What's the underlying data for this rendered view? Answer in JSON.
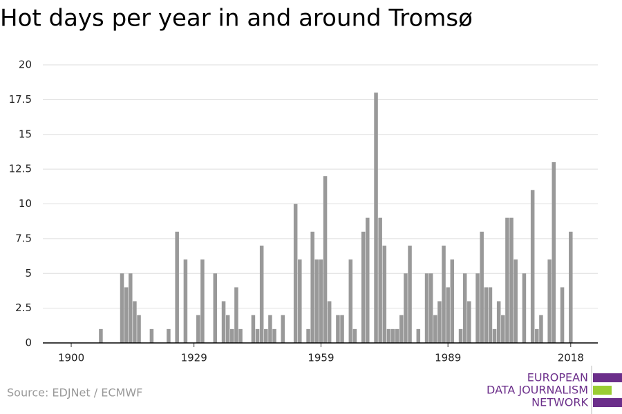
{
  "chart_data": {
    "type": "bar",
    "title": "Hot days per year in and around Tromsø",
    "source": "Source: EDJNet / ECMWF",
    "logo": [
      "EUROPEAN",
      "DATA JOURNALISM",
      "NETWORK"
    ],
    "color": "#999999",
    "x": [
      1900,
      1901,
      1902,
      1903,
      1904,
      1905,
      1906,
      1907,
      1908,
      1909,
      1910,
      1911,
      1912,
      1913,
      1914,
      1915,
      1916,
      1917,
      1918,
      1919,
      1920,
      1921,
      1922,
      1923,
      1924,
      1925,
      1926,
      1927,
      1928,
      1929,
      1930,
      1931,
      1932,
      1933,
      1934,
      1935,
      1936,
      1937,
      1938,
      1939,
      1940,
      1941,
      1942,
      1943,
      1944,
      1945,
      1946,
      1947,
      1948,
      1949,
      1950,
      1951,
      1952,
      1953,
      1954,
      1955,
      1956,
      1957,
      1958,
      1959,
      1960,
      1961,
      1962,
      1963,
      1964,
      1965,
      1966,
      1967,
      1968,
      1969,
      1970,
      1971,
      1972,
      1973,
      1974,
      1975,
      1976,
      1977,
      1978,
      1979,
      1980,
      1981,
      1982,
      1983,
      1984,
      1985,
      1986,
      1987,
      1988,
      1989,
      1990,
      1991,
      1992,
      1993,
      1994,
      1995,
      1996,
      1997,
      1998,
      1999,
      2000,
      2001,
      2002,
      2003,
      2004,
      2005,
      2006,
      2007,
      2008,
      2009,
      2010,
      2011,
      2012,
      2013,
      2014,
      2015,
      2016,
      2017,
      2018
    ],
    "values": [
      0,
      0,
      0,
      0,
      0,
      0,
      0,
      1,
      0,
      0,
      0,
      0,
      5,
      4,
      5,
      3,
      2,
      0,
      0,
      1,
      0,
      0,
      0,
      1,
      0,
      8,
      0,
      6,
      0,
      0,
      2,
      6,
      0,
      0,
      5,
      0,
      3,
      2,
      1,
      4,
      1,
      0,
      0,
      2,
      1,
      7,
      1,
      2,
      1,
      0,
      2,
      0,
      0,
      10,
      6,
      0,
      1,
      8,
      6,
      6,
      12,
      3,
      0,
      2,
      2,
      0,
      6,
      1,
      0,
      8,
      9,
      0,
      18,
      9,
      7,
      1,
      1,
      1,
      2,
      5,
      7,
      0,
      1,
      0,
      5,
      5,
      2,
      3,
      7,
      4,
      6,
      0,
      1,
      5,
      3,
      0,
      5,
      8,
      4,
      4,
      1,
      3,
      2,
      9,
      9,
      6,
      0,
      5,
      0,
      11,
      1,
      2,
      0,
      6,
      13,
      0,
      4,
      0,
      8
    ],
    "xlim": [
      1893.3,
      2024.4
    ],
    "xticks": [
      1900,
      1929,
      1959,
      1989,
      2018
    ],
    "ylim": [
      0,
      20
    ],
    "yticks": [
      0,
      2.5,
      5,
      7.5,
      10,
      12.5,
      15,
      17.5,
      20
    ],
    "grid": true
  }
}
